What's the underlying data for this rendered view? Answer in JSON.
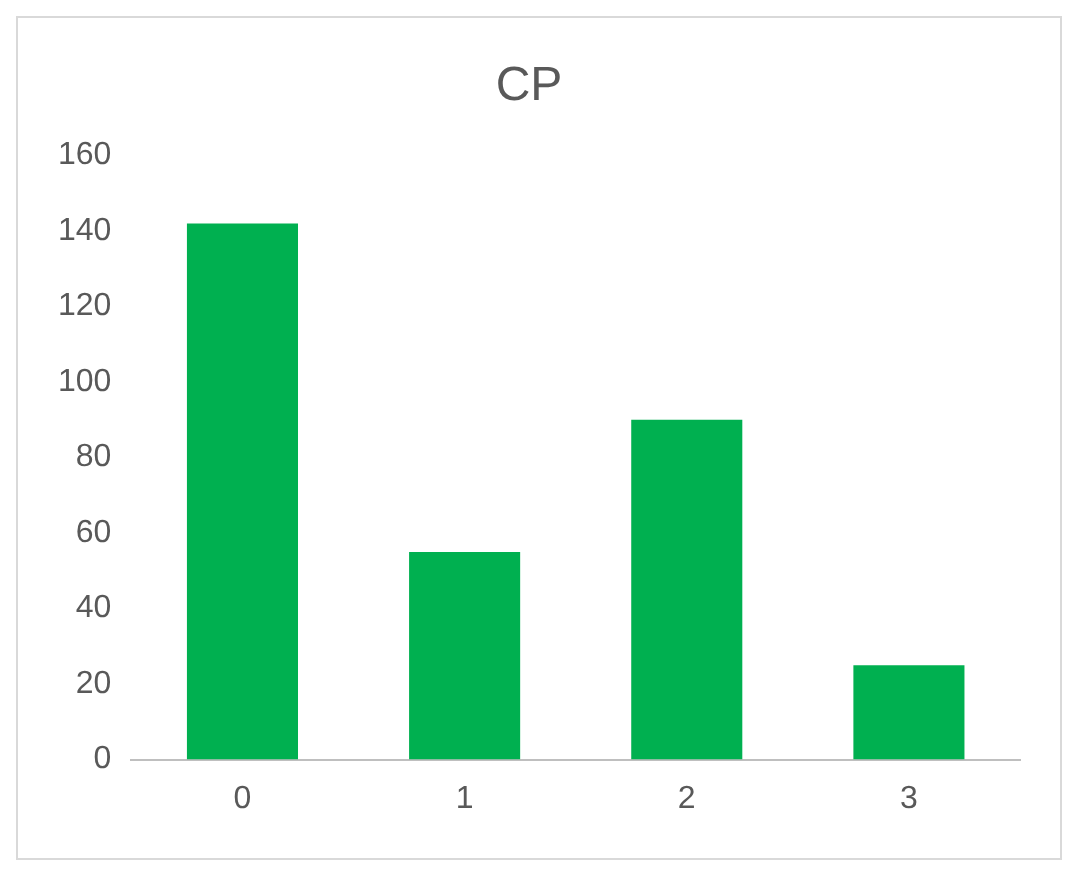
{
  "chart_data": {
    "type": "bar",
    "title": "CP",
    "categories": [
      "0",
      "1",
      "2",
      "3"
    ],
    "values": [
      142,
      55,
      90,
      25
    ],
    "color": "#00b050",
    "ylim": [
      0,
      160
    ],
    "yticks": [
      0,
      20,
      40,
      60,
      80,
      100,
      120,
      140,
      160
    ],
    "grid": false,
    "legend": false
  }
}
